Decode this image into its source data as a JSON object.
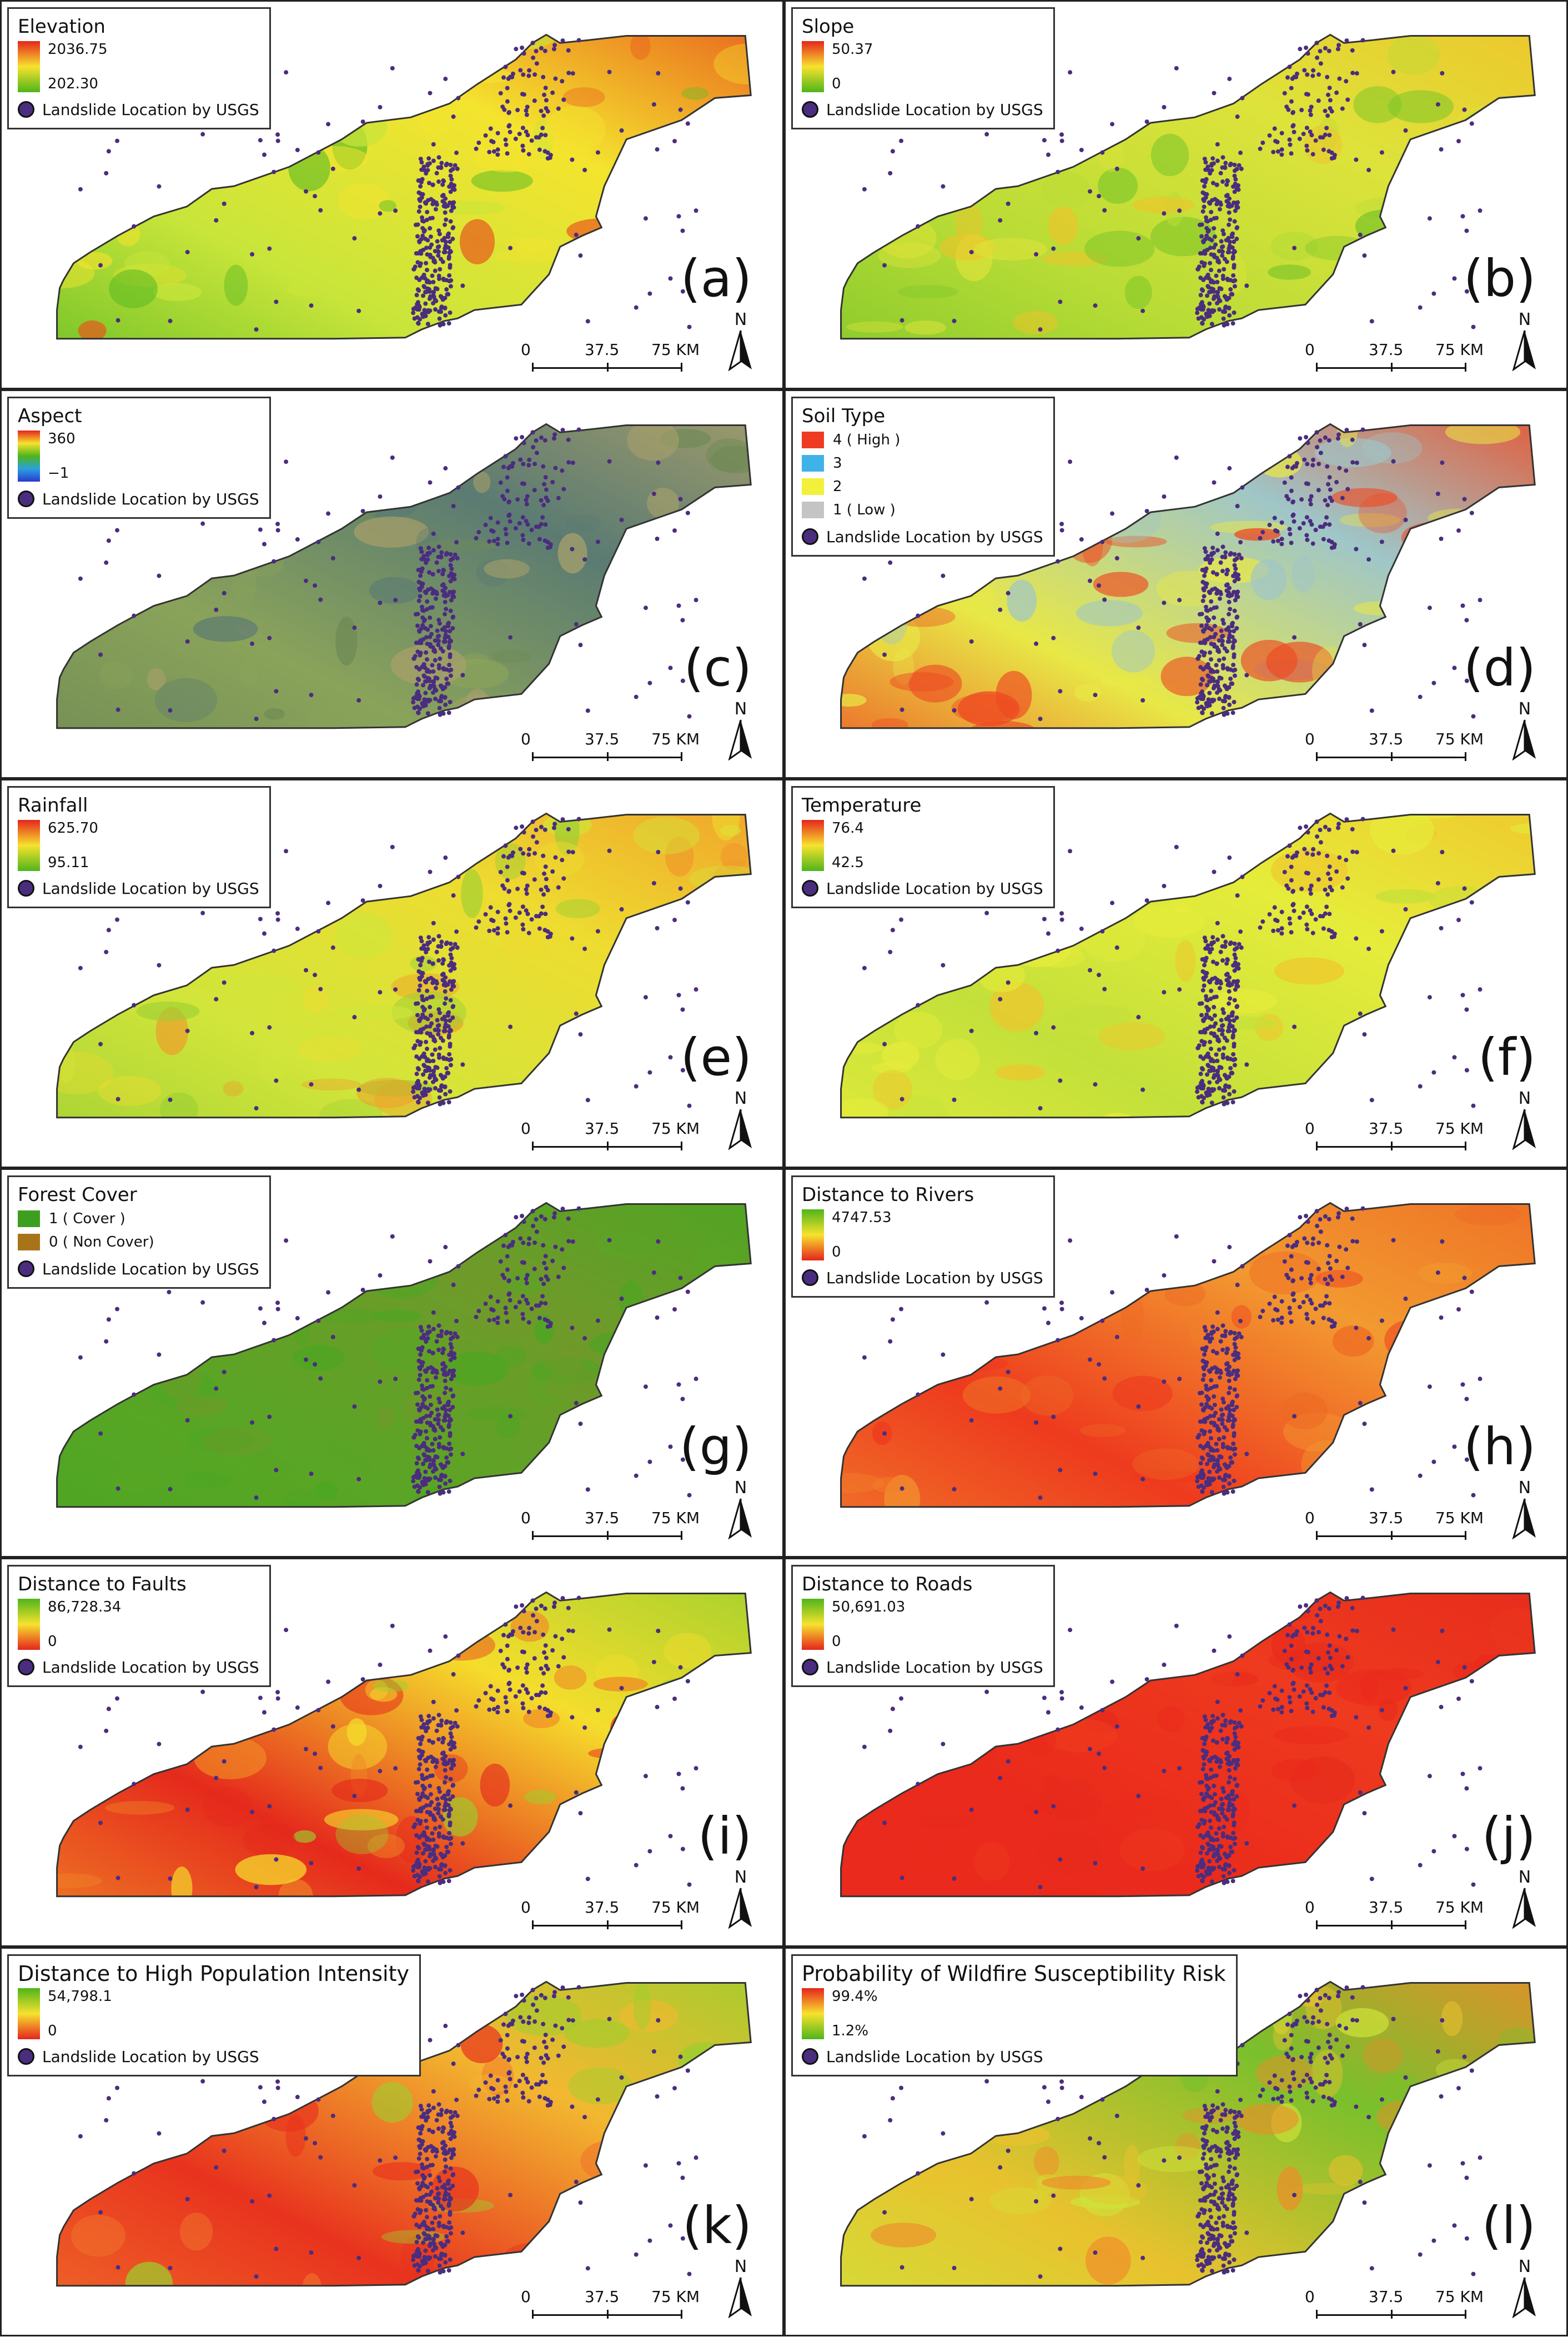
{
  "panels": [
    {
      "id": "a",
      "title": "Elevation",
      "type": "ramp",
      "ramp": [
        "#e5251c",
        "#f7e22e",
        "#4fb51a"
      ],
      "max": "2036.75",
      "min": "202.30",
      "landslide": "Landslide Location by USGS",
      "label": "(a)",
      "map_colors": [
        "#5fbb24",
        "#c9e53a",
        "#f4e42e",
        "#e8541c"
      ]
    },
    {
      "id": "b",
      "title": "Slope",
      "type": "ramp",
      "ramp": [
        "#e5251c",
        "#f7e22e",
        "#4fb51a"
      ],
      "max": "50.37",
      "min": "0",
      "landslide": "Landslide Location by USGS",
      "label": "(b)",
      "map_colors": [
        "#7cc629",
        "#b9dc36",
        "#dde33a",
        "#f0c22a"
      ]
    },
    {
      "id": "c",
      "title": "Aspect",
      "type": "ramp",
      "ramp": [
        "#e5251c",
        "#f7e22e",
        "#4fb51a",
        "#2aa0e0",
        "#2a3ad0"
      ],
      "max": "360",
      "min": "−1",
      "landslide": "Landslide Location by USGS",
      "label": "(c)",
      "map_colors": [
        "#6f8a55",
        "#8aa35a",
        "#5b7b72",
        "#a9a06a"
      ]
    },
    {
      "id": "d",
      "title": "Soil Type",
      "type": "categorical",
      "categories": [
        {
          "label": "4 ( High )",
          "color": "#ee3b22"
        },
        {
          "label": "3",
          "color": "#3fb3e8"
        },
        {
          "label": "2",
          "color": "#f2f03a"
        },
        {
          "label": "1 ( Low )",
          "color": "#c4c4c4"
        }
      ],
      "landslide": "Landslide Location by USGS",
      "label": "(d)",
      "map_colors": [
        "#ee4a22",
        "#e8e846",
        "#9fc6c8",
        "#ee4a22"
      ]
    },
    {
      "id": "e",
      "title": "Rainfall",
      "type": "ramp",
      "ramp": [
        "#e5251c",
        "#f7e22e",
        "#4fb51a"
      ],
      "max": "625.70",
      "min": "95.11",
      "landslide": "Landslide Location by USGS",
      "label": "(e)",
      "map_colors": [
        "#9ccf33",
        "#d2e53a",
        "#eedc30",
        "#f09a2a"
      ]
    },
    {
      "id": "f",
      "title": "Temperature",
      "type": "ramp",
      "ramp": [
        "#e5251c",
        "#f7e22e",
        "#4fb51a"
      ],
      "max": "76.4",
      "min": "42.5",
      "landslide": "Landslide Location by USGS",
      "label": "(f)",
      "map_colors": [
        "#e6ec3a",
        "#c3e03a",
        "#e6ec3a",
        "#f0c42c"
      ]
    },
    {
      "id": "g",
      "title": "Forest Cover",
      "type": "categorical",
      "categories": [
        {
          "label": "1 ( Cover )",
          "color": "#3e9e1f"
        },
        {
          "label": "0 ( Non Cover)",
          "color": "#a8741a"
        }
      ],
      "landslide": "Landslide Location by USGS",
      "label": "(g)",
      "map_colors": [
        "#4aa722",
        "#5aa525",
        "#6f9a2a",
        "#4aa722"
      ]
    },
    {
      "id": "h",
      "title": "Distance to Rivers",
      "type": "ramp",
      "ramp": [
        "#4fb51a",
        "#f7e22e",
        "#e5251c"
      ],
      "max": "4747.53",
      "min": "0",
      "landslide": "Landslide Location by USGS",
      "label": "(h)",
      "map_colors": [
        "#f0802a",
        "#ee3a1e",
        "#f29a30",
        "#ee6a24"
      ]
    },
    {
      "id": "i",
      "title": "Distance to Faults",
      "type": "ramp",
      "ramp": [
        "#4fb51a",
        "#f7e22e",
        "#e5251c"
      ],
      "max": "86,728.34",
      "min": "0",
      "landslide": "Landslide Location by USGS",
      "label": "(i)",
      "map_colors": [
        "#f08a26",
        "#e52a1c",
        "#f5dd2c",
        "#9bcf2e"
      ]
    },
    {
      "id": "j",
      "title": "Distance to Roads",
      "type": "ramp",
      "ramp": [
        "#4fb51a",
        "#f7e22e",
        "#e5251c"
      ],
      "max": "50,691.03",
      "min": "0",
      "landslide": "Landslide Location by USGS",
      "label": "(j)",
      "map_colors": [
        "#ea2a1c",
        "#ea2a1c",
        "#ee3a1e",
        "#e52a1c"
      ]
    },
    {
      "id": "k",
      "title": "Distance to High Population Intensity",
      "type": "ramp",
      "ramp": [
        "#4fb51a",
        "#f7e22e",
        "#e5251c"
      ],
      "max": "54,798.1",
      "min": "0",
      "landslide": "Landslide Location by USGS",
      "label": "(k)",
      "map_colors": [
        "#f0702a",
        "#e8331e",
        "#f2b830",
        "#9ccf2e"
      ]
    },
    {
      "id": "l",
      "title": "Probability of Wildfire Susceptibility Risk",
      "type": "ramp",
      "ramp": [
        "#e5251c",
        "#f7e22e",
        "#4fb51a"
      ],
      "max": "99.4%",
      "min": "1.2%",
      "landslide": "Landslide Location by USGS",
      "label": "(l)",
      "map_colors": [
        "#cfe23a",
        "#e8c22e",
        "#79c02c",
        "#ef8a2a"
      ]
    }
  ],
  "scalebar": {
    "ticks": [
      "0",
      "37.5",
      "75 KM"
    ]
  },
  "north": "N",
  "colors": {
    "landslide_dot": "#4b2d7f",
    "outline": "#333333"
  }
}
